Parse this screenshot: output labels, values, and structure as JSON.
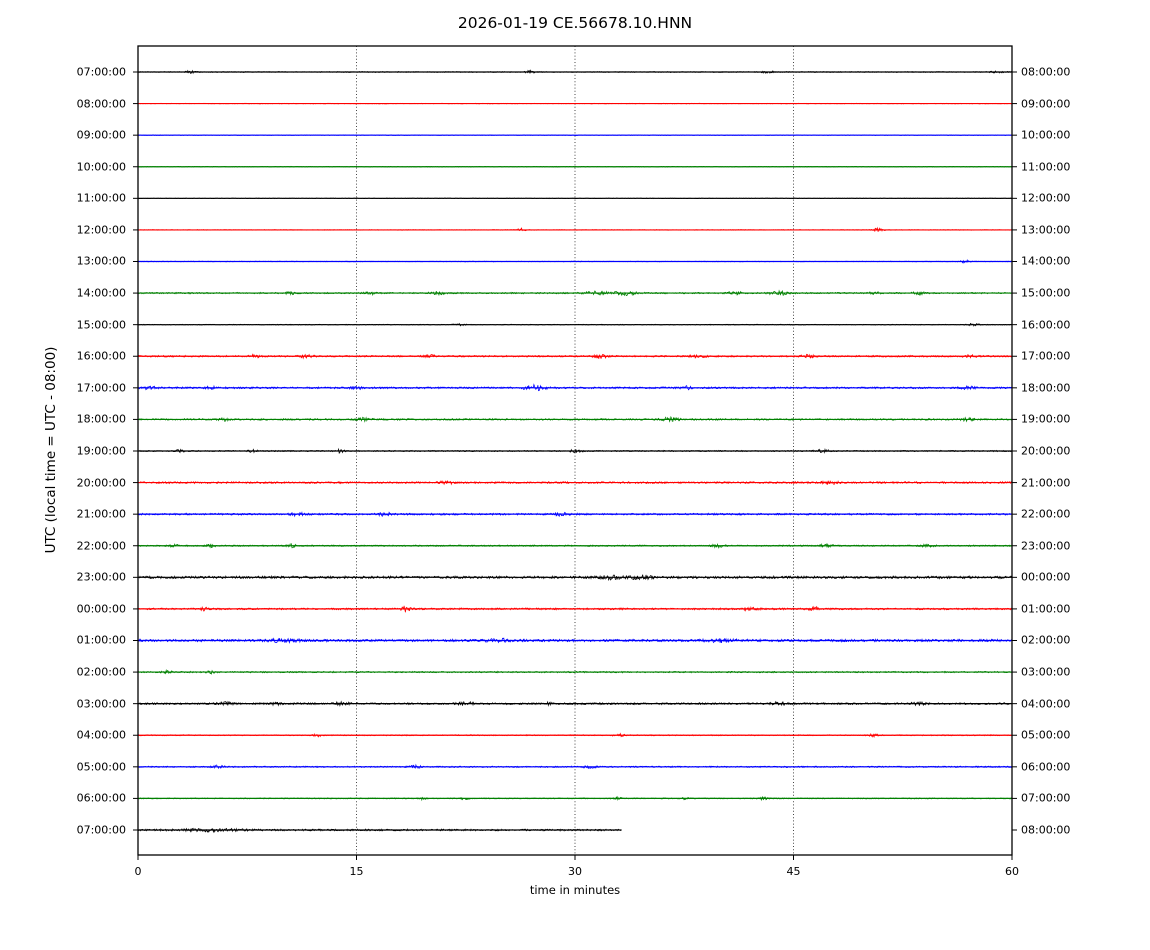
{
  "chart_data": {
    "type": "line",
    "title": "2026-01-19 CE.56678.10.HNN",
    "xlabel": "time in minutes",
    "ylabel": "UTC (local time = UTC - 08:00)",
    "xlim": [
      0,
      60
    ],
    "x_ticks": [
      0,
      15,
      30,
      45,
      60
    ],
    "grid_minutes": [
      15,
      30,
      45
    ],
    "legend": "none",
    "trace_color_cycle": [
      "#000000",
      "#ff0000",
      "#0000ff",
      "#008000"
    ],
    "rows": [
      {
        "left_label": "07:00:00",
        "right_label": "08:00:00",
        "color": "#000000",
        "start_min": 0,
        "end_min": 60,
        "noise": 0.45,
        "events": [
          [
            3.6,
            1.3,
            0.3
          ],
          [
            27,
            1.4,
            0.4
          ],
          [
            43.2,
            1.0,
            0.4
          ],
          [
            59,
            0.8,
            0.5
          ]
        ]
      },
      {
        "left_label": "08:00:00",
        "right_label": "09:00:00",
        "color": "#ff0000",
        "start_min": 0,
        "end_min": 60,
        "noise": 0.3,
        "events": []
      },
      {
        "left_label": "09:00:00",
        "right_label": "10:00:00",
        "color": "#0000ff",
        "start_min": 0,
        "end_min": 60,
        "noise": 0.3,
        "events": []
      },
      {
        "left_label": "10:00:00",
        "right_label": "11:00:00",
        "color": "#008000",
        "start_min": 0,
        "end_min": 60,
        "noise": 0.35,
        "events": []
      },
      {
        "left_label": "11:00:00",
        "right_label": "12:00:00",
        "color": "#000000",
        "start_min": 0,
        "end_min": 60,
        "noise": 0.3,
        "events": []
      },
      {
        "left_label": "12:00:00",
        "right_label": "13:00:00",
        "color": "#ff0000",
        "start_min": 0,
        "end_min": 60,
        "noise": 0.35,
        "events": [
          [
            26.3,
            1.8,
            0.25
          ],
          [
            50.8,
            2.0,
            0.35
          ]
        ]
      },
      {
        "left_label": "13:00:00",
        "right_label": "14:00:00",
        "color": "#0000ff",
        "start_min": 0,
        "end_min": 60,
        "noise": 0.35,
        "events": [
          [
            56.8,
            1.4,
            0.35
          ]
        ]
      },
      {
        "left_label": "14:00:00",
        "right_label": "15:00:00",
        "color": "#008000",
        "start_min": 0,
        "end_min": 60,
        "noise": 0.7,
        "events": [
          [
            10.5,
            1.2,
            0.4
          ],
          [
            16,
            1.2,
            0.4
          ],
          [
            20.5,
            1.4,
            0.5
          ],
          [
            31.5,
            1.6,
            0.8
          ],
          [
            33.5,
            1.8,
            0.8
          ],
          [
            41,
            1.4,
            0.5
          ],
          [
            44,
            1.9,
            0.6
          ],
          [
            50.6,
            1.2,
            0.4
          ],
          [
            53.6,
            1.3,
            0.4
          ]
        ]
      },
      {
        "left_label": "15:00:00",
        "right_label": "16:00:00",
        "color": "#000000",
        "start_min": 0,
        "end_min": 60,
        "noise": 0.4,
        "events": [
          [
            22,
            1.0,
            0.4
          ],
          [
            57.3,
            1.0,
            0.4
          ]
        ]
      },
      {
        "left_label": "16:00:00",
        "right_label": "17:00:00",
        "color": "#ff0000",
        "start_min": 0,
        "end_min": 60,
        "noise": 0.8,
        "events": [
          [
            8,
            1.2,
            0.5
          ],
          [
            11.5,
            1.3,
            0.5
          ],
          [
            20,
            1.2,
            0.4
          ],
          [
            31.8,
            2.0,
            0.5
          ],
          [
            38.5,
            1.2,
            0.5
          ],
          [
            46,
            1.2,
            0.5
          ],
          [
            57,
            1.2,
            0.5
          ]
        ]
      },
      {
        "left_label": "17:00:00",
        "right_label": "18:00:00",
        "color": "#0000ff",
        "start_min": 0,
        "end_min": 60,
        "noise": 0.9,
        "events": [
          [
            0.8,
            1.5,
            0.4
          ],
          [
            5,
            1.3,
            0.3
          ],
          [
            15,
            1.2,
            0.4
          ],
          [
            27.2,
            2.4,
            0.7
          ],
          [
            37.7,
            1.5,
            0.4
          ],
          [
            57,
            1.3,
            0.5
          ]
        ]
      },
      {
        "left_label": "18:00:00",
        "right_label": "19:00:00",
        "color": "#008000",
        "start_min": 0,
        "end_min": 60,
        "noise": 0.8,
        "events": [
          [
            6,
            1.2,
            0.4
          ],
          [
            15.5,
            1.4,
            0.5
          ],
          [
            36.5,
            1.8,
            0.6
          ],
          [
            57,
            1.2,
            0.5
          ]
        ]
      },
      {
        "left_label": "19:00:00",
        "right_label": "20:00:00",
        "color": "#000000",
        "start_min": 0,
        "end_min": 60,
        "noise": 0.6,
        "events": [
          [
            2.9,
            1.4,
            0.3
          ],
          [
            7.9,
            1.4,
            0.3
          ],
          [
            13.9,
            1.8,
            0.3
          ],
          [
            30,
            1.2,
            0.5
          ],
          [
            47,
            1.2,
            0.5
          ]
        ]
      },
      {
        "left_label": "20:00:00",
        "right_label": "21:00:00",
        "color": "#ff0000",
        "start_min": 0,
        "end_min": 60,
        "noise": 0.9,
        "events": [
          [
            21.2,
            1.8,
            0.4
          ],
          [
            47.5,
            1.5,
            0.5
          ]
        ]
      },
      {
        "left_label": "21:00:00",
        "right_label": "22:00:00",
        "color": "#0000ff",
        "start_min": 0,
        "end_min": 60,
        "noise": 0.9,
        "events": [
          [
            11,
            1.4,
            0.5
          ],
          [
            17,
            1.4,
            0.5
          ],
          [
            29,
            1.3,
            0.5
          ]
        ]
      },
      {
        "left_label": "22:00:00",
        "right_label": "23:00:00",
        "color": "#008000",
        "start_min": 0,
        "end_min": 60,
        "noise": 0.7,
        "events": [
          [
            2.5,
            1.4,
            0.3
          ],
          [
            5,
            1.4,
            0.3
          ],
          [
            10.5,
            1.5,
            0.3
          ],
          [
            39.8,
            1.4,
            0.4
          ],
          [
            47.3,
            1.5,
            0.4
          ],
          [
            54.2,
            1.5,
            0.4
          ]
        ]
      },
      {
        "left_label": "23:00:00",
        "right_label": "00:00:00",
        "color": "#000000",
        "start_min": 0,
        "end_min": 60,
        "noise": 1.2,
        "events": [
          [
            32.5,
            1.8,
            0.6
          ],
          [
            34.5,
            1.6,
            0.8
          ]
        ]
      },
      {
        "left_label": "00:00:00",
        "right_label": "01:00:00",
        "color": "#ff0000",
        "start_min": 0,
        "end_min": 60,
        "noise": 0.9,
        "events": [
          [
            4.5,
            1.3,
            0.4
          ],
          [
            18.4,
            2.6,
            0.35
          ],
          [
            42,
            1.2,
            0.5
          ],
          [
            46.5,
            1.4,
            0.4
          ]
        ]
      },
      {
        "left_label": "01:00:00",
        "right_label": "02:00:00",
        "color": "#0000ff",
        "start_min": 0,
        "end_min": 60,
        "noise": 1.2,
        "events": [
          [
            10,
            1.3,
            1.0
          ],
          [
            25,
            1.2,
            1.0
          ],
          [
            40,
            1.3,
            1.0
          ]
        ]
      },
      {
        "left_label": "02:00:00",
        "right_label": "03:00:00",
        "color": "#008000",
        "start_min": 0,
        "end_min": 60,
        "noise": 0.7,
        "events": [
          [
            2,
            1.3,
            0.3
          ],
          [
            5,
            1.2,
            0.3
          ]
        ]
      },
      {
        "left_label": "03:00:00",
        "right_label": "04:00:00",
        "color": "#000000",
        "start_min": 0,
        "end_min": 60,
        "noise": 0.9,
        "events": [
          [
            6,
            1.4,
            0.5
          ],
          [
            9.5,
            1.3,
            0.4
          ],
          [
            14,
            1.2,
            0.4
          ],
          [
            22.5,
            1.5,
            0.5
          ],
          [
            28,
            1.2,
            0.4
          ],
          [
            44,
            1.4,
            0.5
          ],
          [
            53.5,
            1.4,
            0.5
          ]
        ]
      },
      {
        "left_label": "04:00:00",
        "right_label": "05:00:00",
        "color": "#ff0000",
        "start_min": 0,
        "end_min": 60,
        "noise": 0.55,
        "events": [
          [
            12.3,
            1.2,
            0.3
          ],
          [
            33,
            1.1,
            0.4
          ],
          [
            50.5,
            1.2,
            0.4
          ]
        ]
      },
      {
        "left_label": "05:00:00",
        "right_label": "06:00:00",
        "color": "#0000ff",
        "start_min": 0,
        "end_min": 60,
        "noise": 0.7,
        "events": [
          [
            5.5,
            1.4,
            0.4
          ],
          [
            19,
            1.2,
            0.4
          ],
          [
            31,
            1.2,
            0.4
          ]
        ]
      },
      {
        "left_label": "06:00:00",
        "right_label": "07:00:00",
        "color": "#008000",
        "start_min": 0,
        "end_min": 60,
        "noise": 0.5,
        "events": [
          [
            19.5,
            1.0,
            0.3
          ],
          [
            22.5,
            1.1,
            0.3
          ],
          [
            33,
            1.0,
            0.4
          ],
          [
            37.5,
            1.0,
            0.3
          ],
          [
            43,
            1.2,
            0.4
          ]
        ]
      },
      {
        "left_label": "07:00:00",
        "right_label": "08:00:00",
        "color": "#000000",
        "start_min": 0,
        "end_min": 33.2,
        "noise": 0.9,
        "events": [
          [
            5,
            1.2,
            2.0
          ]
        ]
      }
    ]
  }
}
